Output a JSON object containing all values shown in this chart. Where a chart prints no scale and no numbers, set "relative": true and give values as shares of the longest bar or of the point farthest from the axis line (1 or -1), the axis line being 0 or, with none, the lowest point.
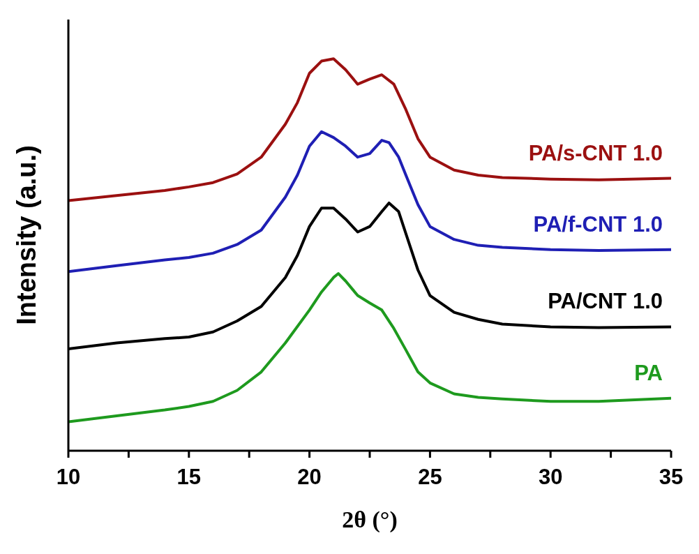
{
  "chart_data": {
    "type": "line",
    "relative": true,
    "xlabel": "2θ (°)",
    "ylabel": "Intensity (a.u.)",
    "xlim": [
      10,
      35
    ],
    "xticks": [
      10,
      {
        "value": 12.5,
        "label": null
      },
      15,
      {
        "value": 17.5,
        "label": null
      },
      20,
      {
        "value": 22.5,
        "label": null
      },
      25,
      {
        "value": 27.5,
        "label": null
      },
      30,
      {
        "value": 32.5,
        "label": null
      },
      35
    ],
    "marker": "none",
    "line_style": "solid",
    "series": [
      {
        "name": "PA/s-CNT 1.0",
        "color": "#9b1010",
        "x": [
          10,
          12,
          14,
          15,
          16,
          17,
          18,
          19,
          19.5,
          20,
          20.5,
          21,
          21.5,
          22,
          22.5,
          23,
          23.5,
          24,
          24.5,
          25,
          26,
          27,
          28,
          30,
          32,
          35
        ],
        "values": [
          0.638,
          0.651,
          0.664,
          0.673,
          0.684,
          0.706,
          0.749,
          0.833,
          0.888,
          0.963,
          0.994,
          1,
          0.972,
          0.935,
          0.948,
          0.959,
          0.935,
          0.87,
          0.796,
          0.749,
          0.716,
          0.703,
          0.697,
          0.693,
          0.691,
          0.695
        ]
      },
      {
        "name": "PA/f-CNT 1.0",
        "color": "#1f1fb4",
        "x": [
          10,
          12,
          14,
          15,
          16,
          17,
          18,
          19,
          19.5,
          20,
          20.5,
          21,
          21.5,
          22,
          22.5,
          23,
          23.3,
          23.7,
          24,
          24.5,
          25,
          26,
          27,
          28,
          30,
          32,
          35
        ],
        "values": [
          0.457,
          0.472,
          0.487,
          0.493,
          0.504,
          0.526,
          0.563,
          0.647,
          0.703,
          0.777,
          0.814,
          0.799,
          0.777,
          0.749,
          0.758,
          0.792,
          0.786,
          0.749,
          0.703,
          0.628,
          0.572,
          0.539,
          0.524,
          0.519,
          0.513,
          0.511,
          0.513
        ]
      },
      {
        "name": "PA/CNT 1.0",
        "color": "#000000",
        "x": [
          10,
          12,
          14,
          15,
          16,
          17,
          18,
          19,
          19.5,
          20,
          20.5,
          21,
          21.5,
          22,
          22.5,
          23,
          23.3,
          23.7,
          24,
          24.5,
          25,
          26,
          27,
          28,
          30,
          32,
          35
        ],
        "values": [
          0.26,
          0.275,
          0.286,
          0.29,
          0.303,
          0.331,
          0.368,
          0.442,
          0.498,
          0.572,
          0.619,
          0.619,
          0.591,
          0.558,
          0.572,
          0.61,
          0.632,
          0.61,
          0.554,
          0.461,
          0.396,
          0.353,
          0.335,
          0.323,
          0.316,
          0.314,
          0.316
        ]
      },
      {
        "name": "PA",
        "color": "#1e9a1e",
        "x": [
          10,
          12,
          14,
          15,
          16,
          17,
          18,
          19,
          20,
          20.5,
          21,
          21.2,
          21.5,
          22,
          22.5,
          23,
          23.5,
          24,
          24.5,
          25,
          26,
          27,
          28,
          30,
          32,
          35
        ],
        "values": [
          0.074,
          0.089,
          0.104,
          0.113,
          0.126,
          0.154,
          0.201,
          0.275,
          0.359,
          0.405,
          0.442,
          0.452,
          0.433,
          0.396,
          0.377,
          0.359,
          0.312,
          0.257,
          0.201,
          0.173,
          0.145,
          0.136,
          0.132,
          0.126,
          0.126,
          0.134
        ]
      }
    ]
  }
}
